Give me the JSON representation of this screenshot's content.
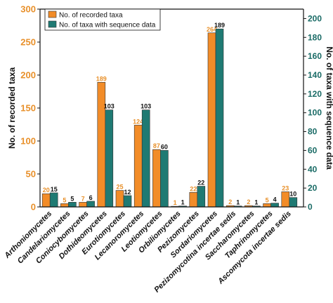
{
  "chart_data": {
    "type": "bar",
    "categories": [
      "Arthoniomycetes",
      "Candelariomycetes",
      "Coniocybomycetes",
      "Dothideomycetes",
      "Eurotiomycetes",
      "Lecanoromycetes",
      "Leotiomycetes",
      "Orbiliomycetes",
      "Pezizomycetes",
      "Sordariomycetes",
      "Pezizomycotina incertae sedis",
      "Saccharomycetes",
      "Taphrinomycetes",
      "Ascomycota incertae sedis"
    ],
    "series": [
      {
        "name": "No. of recorded taxa",
        "axis": "left",
        "color": "#f28c28",
        "values": [
          20,
          5,
          7,
          189,
          25,
          124,
          87,
          1,
          22,
          264,
          2,
          2,
          5,
          23
        ],
        "labels": [
          "20",
          "5",
          "7",
          "189",
          "25",
          "124",
          "87",
          "1",
          "22",
          "264",
          "2",
          "2",
          "5",
          "23"
        ]
      },
      {
        "name": "No. of taxa with sequence data",
        "axis": "right",
        "color": "#1f7a73",
        "values": [
          15,
          5,
          6,
          103,
          12,
          103,
          60,
          1,
          22,
          189,
          1,
          1,
          4,
          10
        ],
        "labels": [
          "15",
          "5",
          "6",
          "103",
          "12",
          "103",
          "60",
          "1",
          "22",
          "189",
          "1",
          "1",
          "4",
          "10"
        ]
      }
    ],
    "ylabel": "No. of recorded taxa",
    "ylabel_right": "No. of taxa with sequence data",
    "ylim": [
      0,
      300
    ],
    "ylim_right": [
      0,
      210
    ],
    "yticks": [
      "0",
      "50",
      "100",
      "150",
      "200",
      "250",
      "300"
    ],
    "yticks_right": [
      "0",
      "20",
      "40",
      "60",
      "80",
      "100",
      "120",
      "140",
      "160",
      "180",
      "200"
    ],
    "legend_position": "top-left",
    "left_axis_color": "#e8902a",
    "right_axis_color": "#1a6b66"
  }
}
